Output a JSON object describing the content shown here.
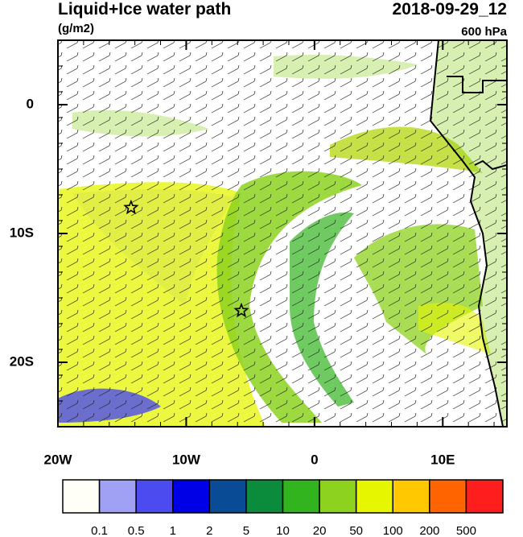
{
  "header": {
    "title": "Liquid+Ice water path",
    "units": "(g/m2)",
    "date": "2018-09-29_12",
    "level": "600 hPa"
  },
  "map": {
    "xlim": [
      -20,
      15
    ],
    "ylim": [
      -25,
      5
    ],
    "xticks": [
      {
        "value": -20,
        "label": "20W"
      },
      {
        "value": -10,
        "label": "10W"
      },
      0,
      {
        "value": 10,
        "label": "10E"
      }
    ],
    "yticks": [
      0,
      {
        "value": -10,
        "label": "10S"
      },
      {
        "value": -20,
        "label": "20S"
      }
    ],
    "markers": [
      {
        "lon": -14.3,
        "lat": -8
      },
      {
        "lon": -5.7,
        "lat": -16
      }
    ]
  },
  "colorbar": {
    "levels": [
      0.1,
      0.5,
      1,
      2,
      5,
      10,
      20,
      50,
      100,
      200,
      500
    ],
    "colors": [
      "#fffff8",
      "#a0a0f5",
      "#4b4bf0",
      "#0000e6",
      "#0a4b96",
      "#0a8c3c",
      "#32b41e",
      "#8cd21e",
      "#e6f500",
      "#ffc800",
      "#ff6400",
      "#ff1e1e"
    ]
  }
}
